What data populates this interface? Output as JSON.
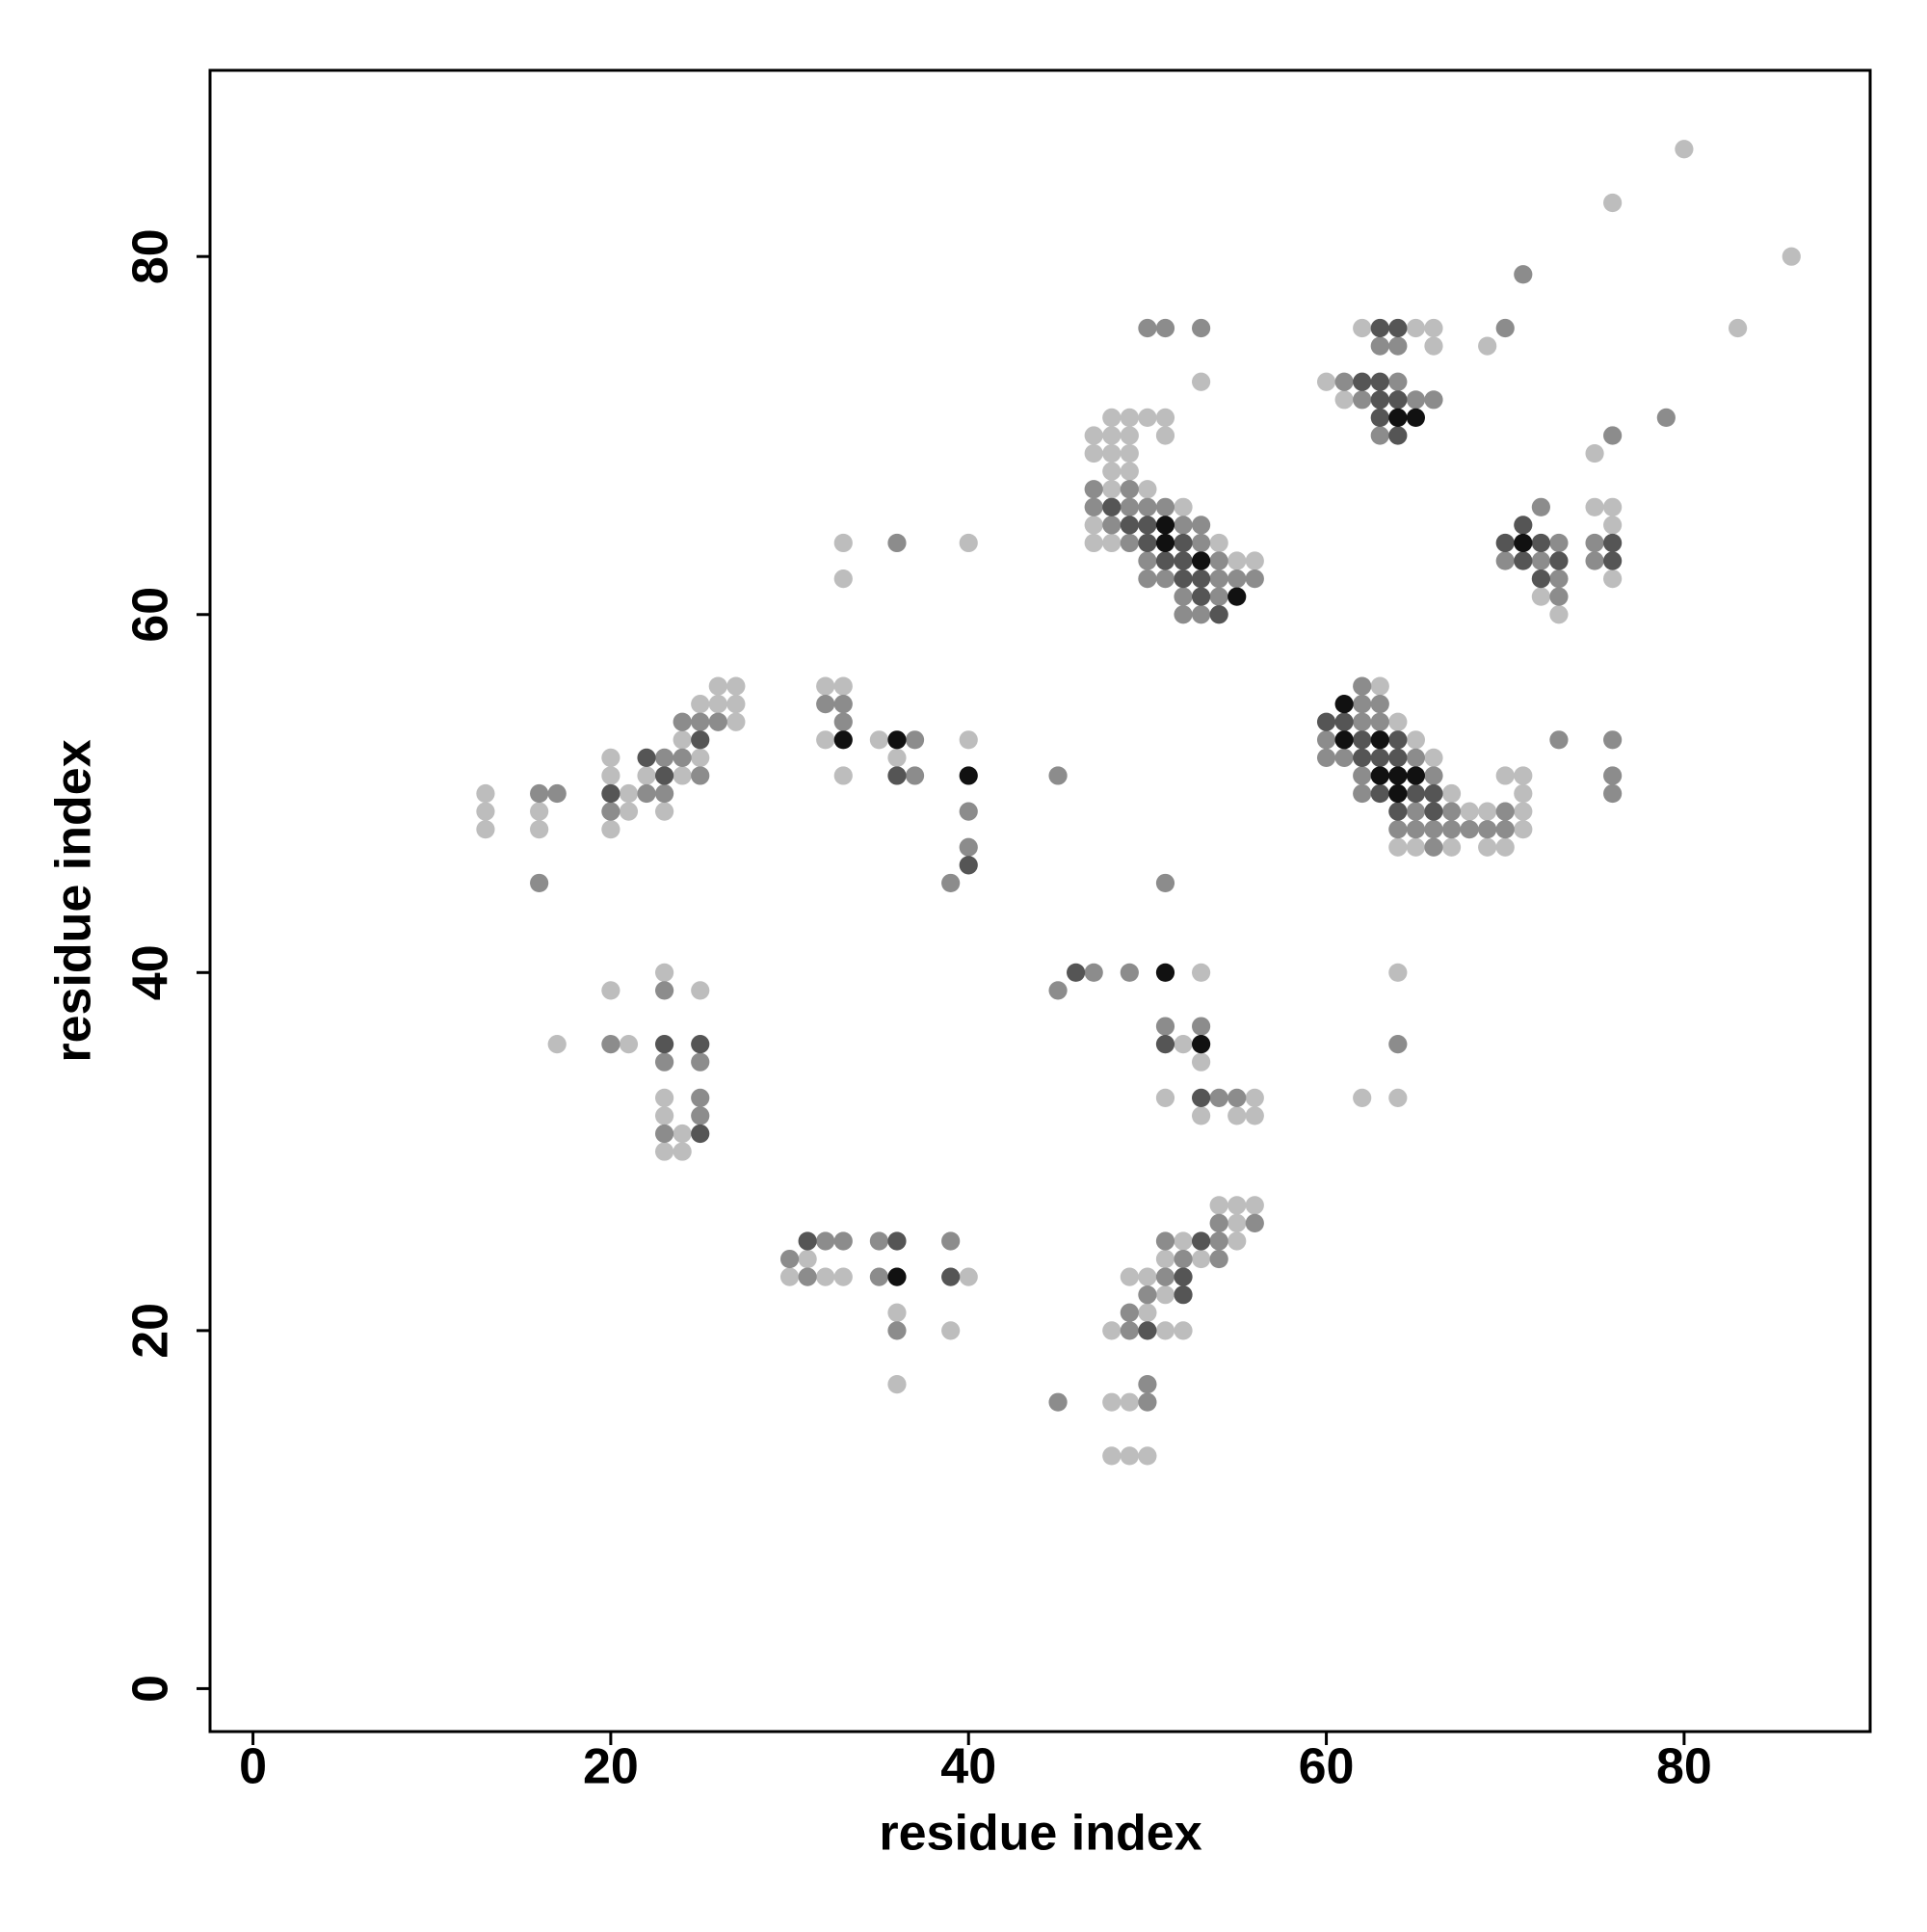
{
  "chart_data": {
    "type": "scatter",
    "x_label": "residue index",
    "y_label": "residue index",
    "xlim": [
      -2.4,
      90.4
    ],
    "ylim": [
      -2.4,
      90.4
    ],
    "xticks": [
      0,
      20,
      40,
      60,
      80
    ],
    "yticks": [
      0,
      20,
      40,
      60,
      80
    ],
    "series": [
      {
        "color": "#bdbdbd",
        "x": [
          80,
          76,
          86,
          83,
          69,
          75,
          62,
          65,
          66,
          66,
          60,
          61,
          53,
          48,
          49,
          50,
          51,
          47,
          48,
          49,
          51,
          47,
          48,
          49,
          48,
          49,
          48,
          50,
          52,
          47,
          47,
          48,
          54,
          55,
          56,
          33,
          33,
          40,
          75,
          76,
          76,
          76,
          72,
          73,
          63,
          64,
          65,
          66,
          70,
          71,
          67,
          71,
          68,
          69,
          71,
          71,
          64,
          65,
          67,
          69,
          70,
          26,
          27,
          25,
          26,
          27,
          27,
          24,
          20,
          25,
          20,
          22,
          24,
          13,
          21,
          13,
          16,
          21,
          23,
          13,
          16,
          20,
          32,
          33,
          32,
          35,
          40,
          36,
          33,
          23,
          53,
          64,
          20,
          25,
          17,
          21,
          52,
          53,
          23,
          51,
          56,
          62,
          64,
          23,
          53,
          55,
          56,
          24,
          23,
          24,
          54,
          55,
          56,
          55,
          52,
          55,
          31,
          51,
          53,
          30,
          32,
          33,
          40,
          49,
          50,
          51,
          36,
          50,
          39,
          48,
          51,
          52,
          36,
          48,
          49,
          48,
          49,
          50
        ],
        "values": [
          86,
          83,
          80,
          76,
          75,
          69,
          76,
          76,
          76,
          75,
          73,
          72,
          73,
          71,
          71,
          71,
          71,
          70,
          70,
          70,
          70,
          69,
          69,
          69,
          68,
          68,
          67,
          67,
          66,
          65,
          64,
          64,
          64,
          63,
          63,
          64,
          62,
          64,
          66,
          66,
          65,
          62,
          61,
          60,
          56,
          54,
          53,
          52,
          51,
          51,
          50,
          50,
          49,
          49,
          49,
          48,
          47,
          47,
          47,
          47,
          47,
          56,
          56,
          55,
          55,
          55,
          54,
          53,
          52,
          52,
          51,
          51,
          51,
          50,
          50,
          49,
          49,
          49,
          49,
          48,
          48,
          48,
          56,
          56,
          53,
          53,
          53,
          52,
          51,
          40,
          40,
          40,
          39,
          39,
          36,
          36,
          36,
          35,
          33,
          33,
          33,
          33,
          33,
          32,
          32,
          32,
          32,
          31,
          30,
          30,
          27,
          27,
          27,
          26,
          25,
          25,
          24,
          24,
          24,
          23,
          23,
          23,
          23,
          23,
          23,
          22,
          21,
          21,
          20,
          20,
          20,
          20,
          17,
          16,
          16,
          13,
          13,
          13
        ]
      },
      {
        "color": "#8c8c8c",
        "x": [
          71,
          70,
          79,
          76,
          63,
          64,
          61,
          64,
          62,
          65,
          66,
          63,
          50,
          51,
          53,
          47,
          49,
          47,
          49,
          50,
          51,
          48,
          52,
          53,
          49,
          53,
          50,
          54,
          50,
          51,
          54,
          55,
          56,
          52,
          54,
          52,
          53,
          36,
          72,
          73,
          75,
          70,
          72,
          75,
          73,
          73,
          73,
          76,
          76,
          76,
          62,
          62,
          63,
          62,
          63,
          60,
          60,
          61,
          65,
          62,
          66,
          62,
          65,
          67,
          70,
          64,
          65,
          66,
          67,
          68,
          69,
          70,
          66,
          24,
          25,
          26,
          23,
          24,
          25,
          16,
          17,
          22,
          23,
          20,
          16,
          32,
          33,
          33,
          37,
          37,
          45,
          40,
          40,
          39,
          51,
          47,
          49,
          23,
          45,
          51,
          53,
          20,
          64,
          23,
          25,
          25,
          54,
          55,
          25,
          23,
          54,
          56,
          32,
          33,
          35,
          39,
          51,
          54,
          30,
          52,
          54,
          31,
          35,
          51,
          50,
          49,
          36,
          49,
          50,
          45,
          50
        ],
        "values": [
          79,
          76,
          71,
          70,
          75,
          75,
          73,
          73,
          72,
          72,
          72,
          70,
          76,
          76,
          76,
          67,
          67,
          66,
          66,
          66,
          66,
          65,
          65,
          65,
          64,
          64,
          63,
          63,
          62,
          62,
          62,
          62,
          62,
          61,
          61,
          60,
          60,
          64,
          66,
          64,
          64,
          63,
          63,
          63,
          62,
          61,
          53,
          53,
          51,
          50,
          56,
          55,
          55,
          54,
          54,
          53,
          52,
          52,
          52,
          51,
          51,
          50,
          49,
          49,
          49,
          48,
          48,
          48,
          48,
          48,
          48,
          48,
          47,
          54,
          54,
          54,
          52,
          52,
          51,
          50,
          50,
          50,
          50,
          49,
          45,
          55,
          55,
          54,
          53,
          51,
          51,
          49,
          47,
          45,
          45,
          40,
          40,
          39,
          39,
          37,
          37,
          36,
          36,
          35,
          35,
          33,
          33,
          33,
          32,
          31,
          26,
          26,
          25,
          25,
          25,
          25,
          25,
          25,
          24,
          24,
          24,
          23,
          23,
          23,
          22,
          21,
          20,
          20,
          17,
          16,
          16
        ]
      },
      {
        "color": "#555555",
        "x": [
          63,
          64,
          62,
          63,
          63,
          64,
          63,
          64,
          48,
          49,
          50,
          50,
          52,
          51,
          52,
          52,
          53,
          53,
          54,
          71,
          70,
          72,
          76,
          71,
          73,
          76,
          72,
          60,
          61,
          62,
          64,
          62,
          63,
          64,
          63,
          65,
          66,
          64,
          66,
          25,
          22,
          23,
          20,
          36,
          40,
          46,
          23,
          25,
          51,
          53,
          25,
          31,
          36,
          53,
          39,
          52,
          52,
          50
        ],
        "values": [
          76,
          76,
          73,
          73,
          72,
          72,
          71,
          70,
          66,
          65,
          65,
          64,
          64,
          63,
          63,
          62,
          62,
          61,
          60,
          65,
          64,
          64,
          64,
          63,
          63,
          63,
          62,
          54,
          54,
          53,
          53,
          52,
          52,
          52,
          50,
          50,
          50,
          49,
          49,
          53,
          52,
          51,
          50,
          51,
          46,
          40,
          36,
          36,
          36,
          33,
          31,
          25,
          25,
          25,
          23,
          23,
          22,
          20
        ]
      },
      {
        "color": "#111111",
        "x": [
          64,
          65,
          51,
          51,
          53,
          55,
          71,
          61,
          61,
          63,
          63,
          64,
          65,
          64,
          33,
          36,
          40,
          51,
          53,
          36
        ],
        "values": [
          71,
          71,
          65,
          64,
          63,
          61,
          64,
          55,
          53,
          53,
          51,
          51,
          51,
          50,
          53,
          53,
          51,
          40,
          36,
          23
        ]
      }
    ]
  }
}
